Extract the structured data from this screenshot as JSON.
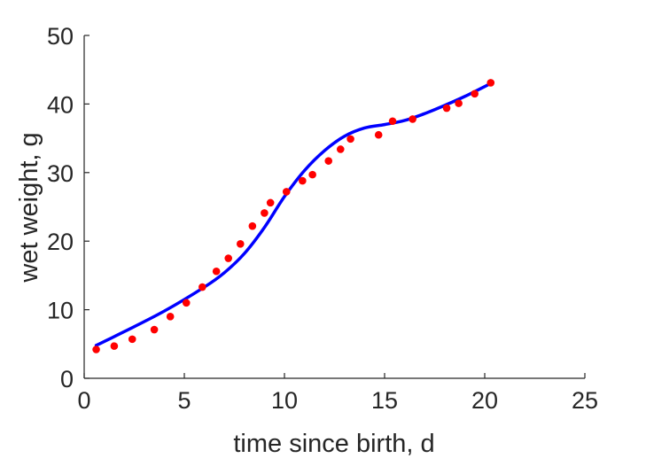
{
  "chart_data": {
    "type": "scatter",
    "title": "",
    "xlabel": "time since birth, d",
    "ylabel": "wet weight, g",
    "xlim": [
      0,
      25
    ],
    "ylim": [
      0,
      50
    ],
    "xticks": [
      "0",
      "5",
      "10",
      "15",
      "20",
      "25"
    ],
    "yticks": [
      "0",
      "10",
      "20",
      "30",
      "40",
      "50"
    ],
    "grid": false,
    "legend": "none",
    "series": [
      {
        "kind": "points",
        "color": "#ff0000",
        "x": [
          0.6,
          1.5,
          2.4,
          3.5,
          4.3,
          5.1,
          5.9,
          6.6,
          7.2,
          7.8,
          8.4,
          9.0,
          9.3,
          10.1,
          10.9,
          11.4,
          12.2,
          12.8,
          13.3,
          14.7,
          15.4,
          16.4,
          18.1,
          18.7,
          19.5,
          20.3
        ],
        "y": [
          4.2,
          4.7,
          5.7,
          7.1,
          9.0,
          11.0,
          13.3,
          15.6,
          17.5,
          19.6,
          22.2,
          24.1,
          25.6,
          27.2,
          28.8,
          29.7,
          31.7,
          33.4,
          34.9,
          35.5,
          37.5,
          37.8,
          39.4,
          40.1,
          41.5,
          43.1
        ]
      },
      {
        "kind": "line",
        "color": "#0000ff",
        "x": [
          0.6,
          2.0,
          4.0,
          6.0,
          7.0,
          8.0,
          9.0,
          10.0,
          11.0,
          12.0,
          13.0,
          14.0,
          15.0,
          16.0,
          17.0,
          18.0,
          19.0,
          20.3
        ],
        "y": [
          4.8,
          6.8,
          9.8,
          13.3,
          15.4,
          18.2,
          22.0,
          26.5,
          30.3,
          33.2,
          35.3,
          36.5,
          37.0,
          37.6,
          38.6,
          39.8,
          41.1,
          43.0
        ]
      }
    ]
  }
}
